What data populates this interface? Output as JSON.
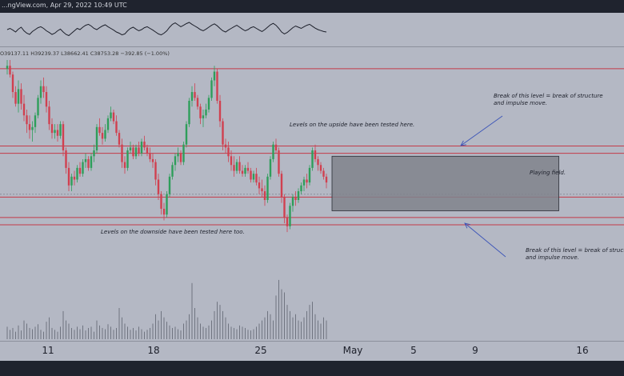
{
  "header": {
    "text": "...ngView.com, Apr 29, 2022 10:49 UTC"
  },
  "ohlc": {
    "text": "O39137.11 H39239.37 L38662.41 C38753.28 −392.85 (−1.00%)"
  },
  "annotations": {
    "upside": "Levels on the upside have been tested here.",
    "downside": "Levels on the downside have been tested here too.",
    "break_top_1": "Break of this level = break of structure",
    "break_top_2": "and impulse move.",
    "break_bottom_1": "Break of this level = break of structure",
    "break_bottom_2": "and impulse move.",
    "playing_field": "Playing field."
  },
  "chart_data": {
    "type": "candlestick",
    "x_ticks": [
      "11",
      "18",
      "25",
      "May",
      "5",
      "9",
      "16"
    ],
    "colors": {
      "up": "#2e9e5a",
      "down": "#d04050",
      "level": "#c43a48",
      "box": "#80838c",
      "arrow": "#3c55b8",
      "volume": "#6f7480"
    },
    "candles": [
      [
        42.2,
        42.5,
        42.0,
        42.3
      ],
      [
        42.3,
        42.5,
        41.9,
        42.0
      ],
      [
        42.0,
        42.1,
        41.2,
        41.4
      ],
      [
        41.4,
        41.6,
        40.9,
        41.0
      ],
      [
        41.0,
        41.8,
        40.7,
        41.5
      ],
      [
        41.5,
        41.7,
        40.8,
        41.0
      ],
      [
        41.0,
        41.3,
        40.4,
        40.6
      ],
      [
        40.6,
        40.8,
        40.0,
        40.3
      ],
      [
        40.3,
        40.6,
        39.8,
        40.1
      ],
      [
        40.1,
        40.4,
        39.7,
        40.2
      ],
      [
        40.2,
        40.7,
        40.0,
        40.6
      ],
      [
        40.6,
        41.3,
        40.5,
        41.2
      ],
      [
        41.2,
        41.8,
        41.0,
        41.6
      ],
      [
        41.6,
        41.9,
        41.2,
        41.4
      ],
      [
        41.4,
        41.6,
        40.7,
        40.9
      ],
      [
        40.9,
        41.1,
        40.1,
        40.3
      ],
      [
        40.3,
        40.5,
        39.8,
        40.0
      ],
      [
        40.0,
        40.3,
        39.8,
        40.1
      ],
      [
        40.1,
        40.3,
        39.7,
        39.9
      ],
      [
        39.9,
        40.4,
        39.8,
        40.3
      ],
      [
        40.3,
        40.4,
        39.2,
        39.4
      ],
      [
        39.4,
        39.5,
        38.6,
        38.8
      ],
      [
        38.8,
        39.0,
        38.0,
        38.2
      ],
      [
        38.2,
        38.6,
        38.0,
        38.5
      ],
      [
        38.5,
        38.7,
        38.2,
        38.4
      ],
      [
        38.4,
        38.9,
        38.3,
        38.8
      ],
      [
        38.8,
        39.0,
        38.5,
        38.6
      ],
      [
        38.6,
        39.1,
        38.5,
        39.0
      ],
      [
        39.0,
        39.3,
        38.8,
        39.1
      ],
      [
        39.1,
        39.2,
        38.7,
        38.8
      ],
      [
        38.8,
        39.3,
        38.7,
        39.2
      ],
      [
        39.2,
        39.6,
        39.0,
        39.4
      ],
      [
        39.4,
        40.3,
        39.3,
        40.2
      ],
      [
        40.2,
        40.5,
        39.9,
        40.0
      ],
      [
        40.0,
        40.2,
        39.6,
        39.8
      ],
      [
        39.8,
        40.3,
        39.7,
        40.1
      ],
      [
        40.1,
        40.6,
        40.0,
        40.5
      ],
      [
        40.5,
        40.9,
        40.4,
        40.7
      ],
      [
        40.7,
        40.8,
        40.3,
        40.4
      ],
      [
        40.4,
        40.6,
        39.9,
        40.0
      ],
      [
        40.0,
        40.1,
        39.5,
        39.6
      ],
      [
        39.6,
        39.8,
        38.8,
        39.0
      ],
      [
        39.0,
        39.2,
        38.6,
        38.8
      ],
      [
        38.8,
        39.5,
        38.7,
        39.4
      ],
      [
        39.4,
        39.7,
        39.3,
        39.5
      ],
      [
        39.5,
        39.6,
        39.1,
        39.2
      ],
      [
        39.2,
        39.6,
        39.1,
        39.5
      ],
      [
        39.5,
        39.7,
        39.2,
        39.3
      ],
      [
        39.3,
        39.8,
        39.2,
        39.7
      ],
      [
        39.7,
        39.9,
        39.4,
        39.5
      ],
      [
        39.5,
        39.6,
        39.2,
        39.3
      ],
      [
        39.3,
        39.5,
        39.0,
        39.1
      ],
      [
        39.1,
        39.3,
        38.8,
        39.0
      ],
      [
        39.0,
        39.1,
        38.2,
        38.4
      ],
      [
        38.4,
        38.6,
        37.7,
        37.9
      ],
      [
        37.9,
        38.0,
        37.2,
        37.4
      ],
      [
        37.4,
        37.6,
        37.0,
        37.2
      ],
      [
        37.2,
        38.0,
        37.1,
        37.9
      ],
      [
        37.9,
        38.6,
        37.8,
        38.5
      ],
      [
        38.5,
        39.0,
        38.4,
        38.9
      ],
      [
        38.9,
        39.3,
        38.7,
        39.2
      ],
      [
        39.2,
        39.5,
        39.0,
        39.3
      ],
      [
        39.3,
        39.4,
        38.9,
        39.0
      ],
      [
        39.0,
        39.7,
        38.9,
        39.6
      ],
      [
        39.6,
        40.4,
        39.5,
        40.3
      ],
      [
        40.3,
        41.2,
        40.2,
        41.1
      ],
      [
        41.1,
        41.6,
        40.9,
        41.4
      ],
      [
        41.4,
        41.7,
        41.1,
        41.2
      ],
      [
        41.2,
        41.3,
        40.8,
        40.9
      ],
      [
        40.9,
        41.0,
        40.3,
        40.5
      ],
      [
        40.5,
        40.8,
        40.2,
        40.6
      ],
      [
        40.6,
        41.0,
        40.5,
        40.8
      ],
      [
        40.8,
        41.3,
        40.7,
        41.2
      ],
      [
        41.2,
        41.9,
        41.1,
        41.8
      ],
      [
        41.8,
        42.3,
        41.6,
        42.1
      ],
      [
        42.1,
        42.2,
        41.0,
        41.1
      ],
      [
        41.1,
        41.3,
        40.2,
        40.4
      ],
      [
        40.4,
        40.5,
        39.4,
        39.6
      ],
      [
        39.6,
        39.8,
        39.3,
        39.5
      ],
      [
        39.5,
        39.7,
        39.0,
        39.2
      ],
      [
        39.2,
        39.4,
        38.7,
        38.9
      ],
      [
        38.9,
        39.2,
        38.5,
        38.7
      ],
      [
        38.7,
        39.1,
        38.6,
        39.0
      ],
      [
        39.0,
        39.2,
        38.6,
        38.7
      ],
      [
        38.7,
        38.9,
        38.5,
        38.6
      ],
      [
        38.6,
        38.9,
        38.5,
        38.8
      ],
      [
        38.8,
        39.0,
        38.6,
        38.7
      ],
      [
        38.7,
        38.8,
        38.3,
        38.4
      ],
      [
        38.4,
        38.7,
        38.3,
        38.6
      ],
      [
        38.6,
        38.8,
        38.2,
        38.3
      ],
      [
        38.3,
        38.5,
        37.9,
        38.1
      ],
      [
        38.1,
        38.4,
        37.8,
        38.0
      ],
      [
        38.0,
        38.2,
        37.5,
        37.7
      ],
      [
        37.7,
        38.6,
        37.6,
        38.5
      ],
      [
        38.5,
        39.2,
        38.4,
        39.1
      ],
      [
        39.1,
        39.7,
        39.0,
        39.6
      ],
      [
        39.6,
        39.8,
        39.3,
        39.4
      ],
      [
        39.4,
        39.5,
        38.5,
        38.6
      ],
      [
        38.6,
        38.7,
        37.6,
        37.8
      ],
      [
        37.8,
        37.9,
        36.9,
        37.1
      ],
      [
        37.1,
        37.2,
        36.6,
        36.8
      ],
      [
        36.8,
        37.6,
        36.7,
        37.5
      ],
      [
        37.5,
        37.9,
        37.3,
        37.8
      ],
      [
        37.8,
        38.0,
        37.5,
        37.7
      ],
      [
        37.7,
        38.1,
        37.6,
        38.0
      ],
      [
        38.0,
        38.3,
        37.9,
        38.2
      ],
      [
        38.2,
        38.5,
        38.0,
        38.4
      ],
      [
        38.4,
        38.6,
        38.1,
        38.3
      ],
      [
        38.3,
        38.9,
        38.2,
        38.8
      ],
      [
        38.8,
        39.5,
        38.7,
        39.4
      ],
      [
        39.4,
        39.6,
        39.0,
        39.1
      ],
      [
        39.1,
        39.2,
        38.7,
        38.9
      ],
      [
        38.9,
        39.0,
        38.6,
        38.7
      ],
      [
        38.7,
        38.8,
        38.4,
        38.5
      ],
      [
        38.5,
        38.6,
        38.1,
        38.3
      ]
    ],
    "levels": [
      {
        "name": "top-resistance",
        "price": 42.2
      },
      {
        "name": "upper-break",
        "price": 39.55
      },
      {
        "name": "upper-break-2",
        "price": 39.3
      },
      {
        "name": "lower-level",
        "price": 37.8
      },
      {
        "name": "lower-break",
        "price": 37.1
      },
      {
        "name": "lower-break-2",
        "price": 36.85
      }
    ],
    "dashed_level": {
      "price": 37.9
    },
    "playing_field": {
      "x_start": 116,
      "x_end": 197,
      "p_top": 39.2,
      "p_bot": 37.33
    },
    "volumes": [
      0.2,
      0.15,
      0.18,
      0.12,
      0.22,
      0.14,
      0.3,
      0.25,
      0.18,
      0.16,
      0.2,
      0.24,
      0.15,
      0.12,
      0.28,
      0.35,
      0.18,
      0.15,
      0.12,
      0.2,
      0.45,
      0.3,
      0.25,
      0.18,
      0.15,
      0.2,
      0.16,
      0.22,
      0.14,
      0.18,
      0.2,
      0.12,
      0.3,
      0.22,
      0.18,
      0.16,
      0.24,
      0.2,
      0.15,
      0.18,
      0.5,
      0.35,
      0.25,
      0.2,
      0.15,
      0.18,
      0.14,
      0.2,
      0.16,
      0.12,
      0.15,
      0.18,
      0.25,
      0.4,
      0.3,
      0.45,
      0.35,
      0.28,
      0.22,
      0.18,
      0.2,
      0.16,
      0.14,
      0.25,
      0.3,
      0.4,
      0.9,
      0.5,
      0.35,
      0.25,
      0.2,
      0.18,
      0.22,
      0.3,
      0.45,
      0.6,
      0.55,
      0.45,
      0.35,
      0.25,
      0.2,
      0.18,
      0.16,
      0.22,
      0.2,
      0.18,
      0.15,
      0.14,
      0.16,
      0.2,
      0.25,
      0.3,
      0.35,
      0.45,
      0.4,
      0.3,
      0.7,
      0.95,
      0.8,
      0.75,
      0.55,
      0.45,
      0.35,
      0.4,
      0.3,
      0.28,
      0.35,
      0.45,
      0.55,
      0.6,
      0.4,
      0.3,
      0.25,
      0.35,
      0.3
    ],
    "oscillator": [
      0.5,
      0.55,
      0.48,
      0.4,
      0.52,
      0.6,
      0.45,
      0.35,
      0.3,
      0.42,
      0.5,
      0.58,
      0.62,
      0.55,
      0.45,
      0.38,
      0.3,
      0.35,
      0.45,
      0.52,
      0.4,
      0.3,
      0.25,
      0.35,
      0.45,
      0.55,
      0.5,
      0.6,
      0.68,
      0.72,
      0.65,
      0.55,
      0.5,
      0.58,
      0.65,
      0.7,
      0.62,
      0.55,
      0.48,
      0.4,
      0.35,
      0.28,
      0.32,
      0.45,
      0.55,
      0.6,
      0.52,
      0.45,
      0.5,
      0.58,
      0.62,
      0.55,
      0.48,
      0.4,
      0.32,
      0.28,
      0.35,
      0.45,
      0.6,
      0.72,
      0.78,
      0.7,
      0.62,
      0.68,
      0.75,
      0.8,
      0.72,
      0.65,
      0.58,
      0.5,
      0.45,
      0.52,
      0.6,
      0.68,
      0.74,
      0.66,
      0.55,
      0.45,
      0.4,
      0.48,
      0.55,
      0.62,
      0.68,
      0.6,
      0.52,
      0.45,
      0.5,
      0.58,
      0.62,
      0.55,
      0.48,
      0.42,
      0.5,
      0.6,
      0.7,
      0.76,
      0.68,
      0.55,
      0.4,
      0.32,
      0.38,
      0.48,
      0.58,
      0.65,
      0.6,
      0.55,
      0.62,
      0.68,
      0.72,
      0.64,
      0.56,
      0.5,
      0.46,
      0.42,
      0.4
    ]
  }
}
